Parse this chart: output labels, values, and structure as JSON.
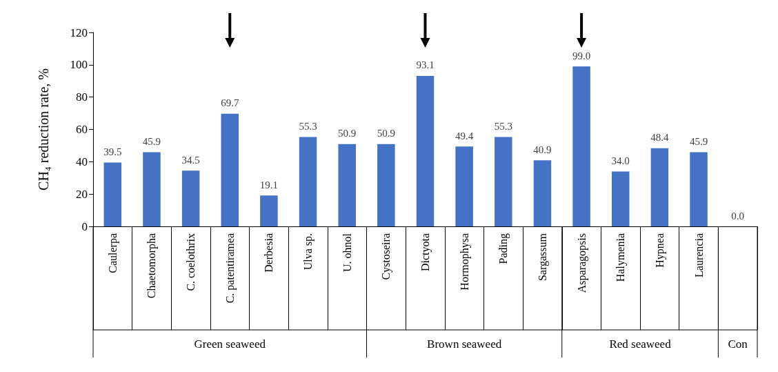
{
  "chart_data": {
    "type": "bar",
    "ylabel": "CH₄ reduction rate, %",
    "categories": [
      "Caulerpa",
      "Chaetomorpha",
      "C. coelothrix",
      "C. patentiramea",
      "Derbesia",
      "Ulva sp.",
      "U. ohnol",
      "Cystoseira",
      "Dictyota",
      "Hormophysa",
      "Pading",
      "Sargassum",
      "Asparagopsis",
      "Halymenia",
      "Hypnea",
      "Laurencia",
      null
    ],
    "values": [
      39.5,
      45.9,
      34.5,
      69.7,
      19.1,
      55.3,
      50.9,
      50.9,
      93.1,
      49.4,
      55.3,
      40.9,
      99.0,
      34.0,
      48.4,
      45.9,
      0.0
    ],
    "value_labels": [
      "39.5",
      "45.9",
      "34.5",
      "69.7",
      "19.1",
      "55.3",
      "50.9",
      "50.9",
      "93.1",
      "49.4",
      "55.3",
      "40.9",
      "99.0",
      "34.0",
      "48.4",
      "45.9",
      "0.0"
    ],
    "color": "#4472c4",
    "ylim": [
      0,
      120
    ],
    "yticks": [
      0,
      20,
      40,
      60,
      80,
      100,
      120
    ],
    "grid": false,
    "annotations": [
      "Green seaweed",
      "Brown seaweed",
      "Red seaweed",
      "Con"
    ]
  }
}
